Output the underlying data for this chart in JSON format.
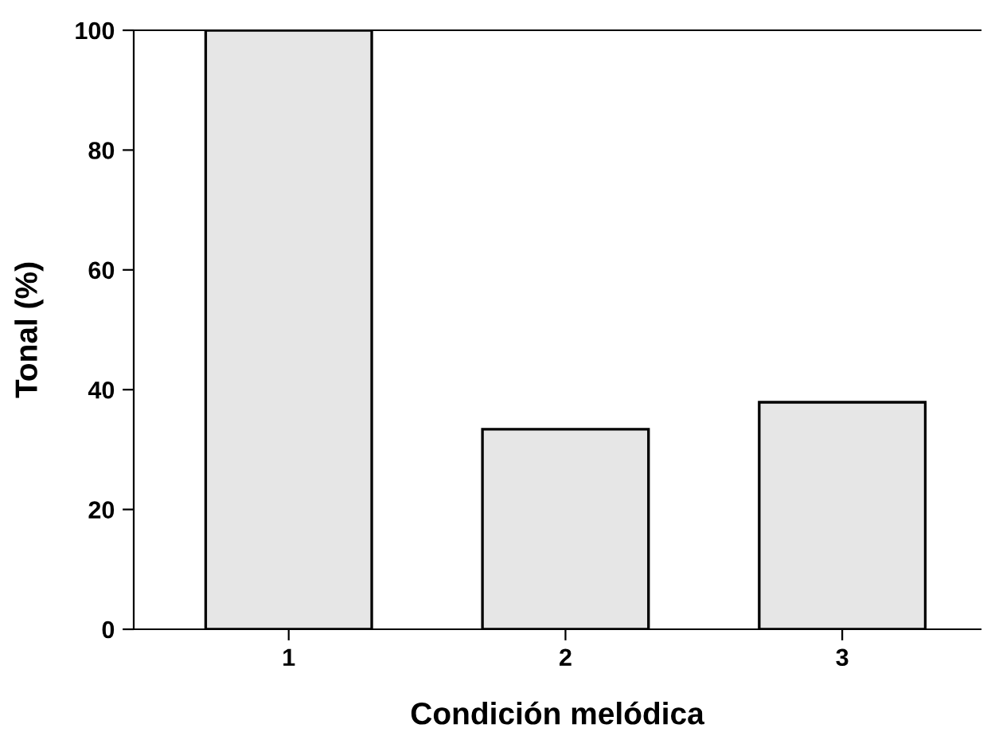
{
  "chart_data": {
    "type": "bar",
    "xlabel": "Condición melódica",
    "ylabel": "Tonal (%)",
    "categories": [
      "1",
      "2",
      "3"
    ],
    "values": [
      100,
      33.4,
      37.9
    ],
    "color": "#e6e6e6",
    "ylim": [
      0,
      100
    ],
    "yticks": [
      0,
      20,
      40,
      60,
      80,
      100
    ],
    "grid": false
  }
}
